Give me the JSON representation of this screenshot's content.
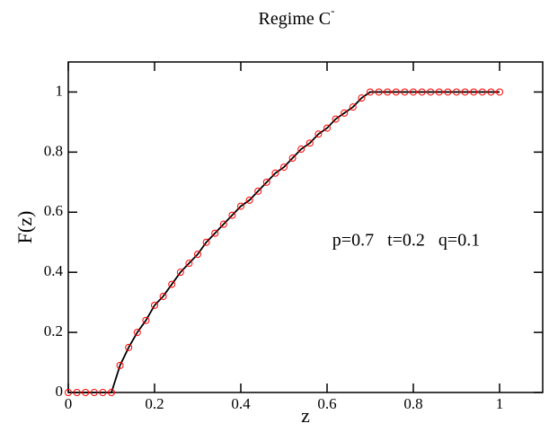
{
  "chart_data": {
    "type": "line",
    "title": {
      "text": "Regime C",
      "superscript": "-"
    },
    "xlabel": "z",
    "ylabel": "F(z)",
    "annotation": "p=0.7   t=0.2   q=0.1",
    "x": [
      0,
      0.02,
      0.04,
      0.06,
      0.08,
      0.1,
      0.12,
      0.14,
      0.16,
      0.18,
      0.2,
      0.22,
      0.24,
      0.26,
      0.28,
      0.3,
      0.32,
      0.34,
      0.36,
      0.38,
      0.4,
      0.42,
      0.44,
      0.46,
      0.48,
      0.5,
      0.52,
      0.54,
      0.56,
      0.58,
      0.6,
      0.62,
      0.64,
      0.66,
      0.68,
      0.7,
      0.72,
      0.74,
      0.76,
      0.78,
      0.8,
      0.82,
      0.84,
      0.86,
      0.88,
      0.9,
      0.92,
      0.94,
      0.96,
      0.98,
      1
    ],
    "values": [
      0,
      0,
      0,
      0,
      0,
      0,
      0.09,
      0.15,
      0.2,
      0.24,
      0.29,
      0.32,
      0.36,
      0.4,
      0.43,
      0.46,
      0.5,
      0.53,
      0.56,
      0.59,
      0.62,
      0.64,
      0.67,
      0.7,
      0.73,
      0.75,
      0.78,
      0.81,
      0.83,
      0.86,
      0.88,
      0.91,
      0.93,
      0.95,
      0.98,
      1,
      1,
      1,
      1,
      1,
      1,
      1,
      1,
      1,
      1,
      1,
      1,
      1,
      1,
      1,
      1
    ],
    "line_color": "#000000",
    "marker_color": "#ff0000",
    "xlim": [
      0,
      1.1
    ],
    "xticks": [
      0,
      0.2,
      0.4,
      0.6,
      0.8,
      1
    ],
    "ylim": [
      0,
      1.1
    ],
    "yticks": [
      0,
      0.2,
      0.4,
      0.6,
      0.8,
      1
    ]
  }
}
